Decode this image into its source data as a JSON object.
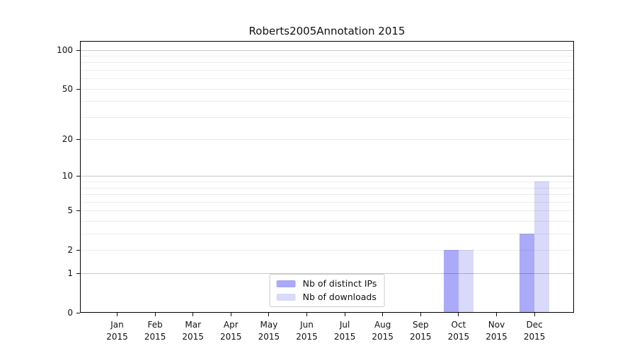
{
  "title": "Roberts2005Annotation 2015",
  "colors": {
    "distinct_ips_bar": "#aaaaf8",
    "downloads_bar": "#d9d9f9",
    "axis_line": "#000000",
    "grid_major": "rgba(0,0,0,0.22)",
    "grid_minor": "rgba(0,0,0,0.07)",
    "legend_border": "#cccccc",
    "text": "#111111"
  },
  "legend": {
    "items": [
      {
        "label": "Nb of distinct IPs",
        "series": "distinct_ips"
      },
      {
        "label": "Nb of downloads",
        "series": "downloads"
      }
    ],
    "position": "lower center"
  },
  "chart_data": {
    "type": "bar",
    "title": "Roberts2005Annotation 2015",
    "categories": [
      "Jan 2015",
      "Feb 2015",
      "Mar 2015",
      "Apr 2015",
      "May 2015",
      "Jun 2015",
      "Jul 2015",
      "Aug 2015",
      "Sep 2015",
      "Oct 2015",
      "Nov 2015",
      "Dec 2015"
    ],
    "series": [
      {
        "name": "Nb of distinct IPs",
        "values": [
          0,
          0,
          0,
          0,
          0,
          0,
          0,
          0,
          0,
          2,
          0,
          3
        ]
      },
      {
        "name": "Nb of downloads",
        "values": [
          0,
          0,
          0,
          0,
          0,
          0,
          0,
          0,
          0,
          2,
          0,
          9
        ]
      }
    ],
    "xlabel": "",
    "ylabel": "",
    "yscale": "log(1+x)",
    "ylim": [
      0,
      117
    ],
    "yticks": [
      0,
      1,
      2,
      5,
      10,
      20,
      50,
      100
    ],
    "major_gridlines": [
      1,
      10,
      100
    ],
    "minor_gridlines": [
      2,
      3,
      4,
      5,
      6,
      7,
      8,
      9,
      20,
      30,
      40,
      50,
      60,
      70,
      80,
      90
    ],
    "grid": "horizontal",
    "legend_position": "lower center"
  }
}
